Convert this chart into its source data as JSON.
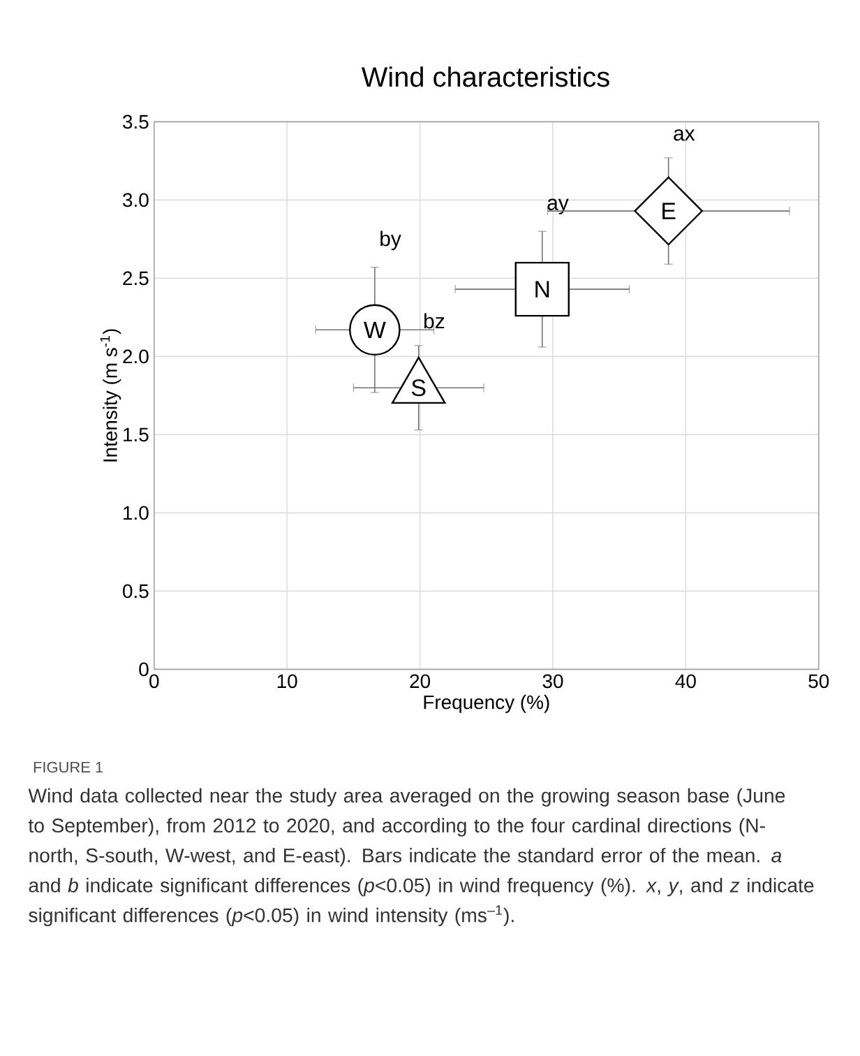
{
  "chart_data": {
    "type": "scatter",
    "title": "Wind characteristics",
    "xlabel": "Frequency (%)",
    "ylabel": "Intensity (m s$^{-1}$)",
    "xlim": [
      0,
      50
    ],
    "ylim": [
      0,
      3.5
    ],
    "xticks": [
      0,
      10,
      20,
      30,
      40,
      50
    ],
    "yticks": [
      0,
      0.5,
      {
        "value": 1,
        "label": "1.0"
      },
      1.5,
      {
        "value": 2,
        "label": "2.0"
      },
      2.5,
      {
        "value": 3,
        "label": "3.0"
      },
      3.5
    ],
    "grid": true,
    "series": [
      {
        "name": "W",
        "color": "#000000",
        "marker": "circle",
        "x": [
          16.6
        ],
        "values": [
          2.17
        ],
        "value_labels": [
          "by"
        ],
        "errors": [
          0.4
        ],
        "xerrors": [
          4.45
        ]
      },
      {
        "name": "S",
        "color": "#000000",
        "marker": "triangle",
        "x": [
          19.9
        ],
        "values": [
          1.8
        ],
        "value_labels": [
          "bz"
        ],
        "errors": [
          0.27
        ],
        "xerrors": [
          4.9
        ]
      },
      {
        "name": "N",
        "color": "#000000",
        "marker": "square",
        "x": [
          29.2
        ],
        "values": [
          2.43
        ],
        "value_labels": [
          "ay"
        ],
        "errors": [
          0.37
        ],
        "xerrors": [
          6.55
        ]
      },
      {
        "name": "E",
        "color": "#000000",
        "marker": "diamond",
        "x": [
          38.7
        ],
        "values": [
          2.93
        ],
        "value_labels": [
          "ax"
        ],
        "errors": [
          0.34
        ],
        "xerrors": [
          9.1
        ]
      }
    ],
    "annotations": [
      "FIGURE 1",
      "Wind data collected near the study area averaged on the growing season base (June to September), from 2012 to 2020, and according to the four cardinal directions (N-north, S-south, W-west, and E-east). Bars indicate the standard error of the mean. *a* and *b* indicate significant differences (*p*<0.05) in wind frequency (%). *x*, *y*, and *z* indicate significant differences (*p*<0.05) in wind intensity (ms$^{–1}$)."
    ]
  }
}
